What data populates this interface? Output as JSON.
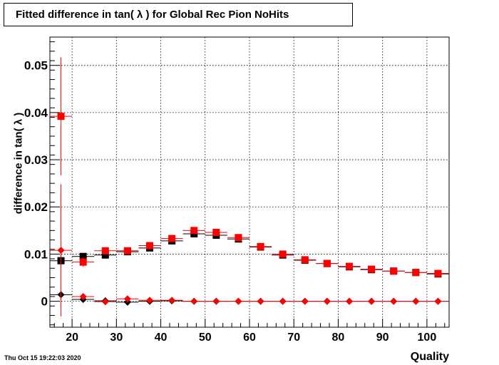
{
  "title": "Fitted difference in tan( λ ) for Global Rec Pion NoHits",
  "footer": {
    "timestamp": "Thu Oct 15 19:22:03 2020"
  },
  "chart_data": {
    "type": "scatter",
    "title": "Fitted difference in tan( λ ) for Global Rec Pion NoHits",
    "xlabel": "Quality",
    "ylabel": "difference in tan( λ )",
    "xlim": [
      15,
      105
    ],
    "ylim": [
      -0.0055,
      0.056
    ],
    "grid": true,
    "x_ticks": [
      "20",
      "30",
      "40",
      "50",
      "60",
      "70",
      "80",
      "90",
      "100"
    ],
    "y_ticks": [
      "0",
      "0.01",
      "0.02",
      "0.03",
      "0.04",
      "0.05"
    ],
    "bin_half_width": 2.5,
    "x": [
      17.5,
      22.5,
      27.5,
      32.5,
      37.5,
      42.5,
      47.5,
      52.5,
      57.5,
      62.5,
      67.5,
      72.5,
      77.5,
      82.5,
      87.5,
      92.5,
      97.5,
      102.5
    ],
    "series": [
      {
        "color": "#000000",
        "marker": "square",
        "values": [
          0.0086,
          0.0095,
          0.0098,
          0.0105,
          0.0113,
          0.0128,
          0.0143,
          0.014,
          0.0132,
          0.0115,
          0.0098,
          0.0087,
          0.008,
          0.0073,
          0.0067,
          0.0064,
          0.0061,
          0.0058
        ],
        "errors": [
          0.0013,
          0.0005,
          0.0004,
          0.0003,
          0.0003,
          0.0003,
          0.0002,
          0.0002,
          0.0002,
          0.0002,
          0.0002,
          0.0002,
          0.0002,
          0.0002,
          0.0002,
          0.0002,
          0.0002,
          0.0002
        ]
      },
      {
        "color": "#ff0000",
        "marker": "square",
        "values": [
          0.0392,
          0.0083,
          0.0107,
          0.0107,
          0.0118,
          0.0133,
          0.015,
          0.0146,
          0.0135,
          0.0116,
          0.01,
          0.0088,
          0.008,
          0.0074,
          0.0068,
          0.0064,
          0.0061,
          0.0059
        ],
        "errors": [
          0.0125,
          0.001,
          0.0005,
          0.0004,
          0.0003,
          0.0003,
          0.0003,
          0.0002,
          0.0002,
          0.0002,
          0.0002,
          0.0002,
          0.0002,
          0.0002,
          0.0002,
          0.0002,
          0.0002,
          0.0002
        ]
      },
      {
        "color": "#000000",
        "marker": "diamond",
        "values": [
          0.0014,
          0.0004,
          0.0001,
          -0.0002,
          0.0,
          0.0001,
          0.0,
          0.0,
          0.0,
          0.0,
          0.0,
          0.0,
          0.0,
          0.0,
          0.0,
          0.0,
          0.0,
          0.0
        ],
        "errors": [
          0.001,
          0.0003,
          0.0002,
          0.0002,
          0.0001,
          0.0001,
          0.0001,
          0.0001,
          0.0001,
          0.0001,
          0.0001,
          0.0001,
          0.0001,
          0.0001,
          0.0001,
          0.0001,
          0.0001,
          0.0001
        ]
      },
      {
        "color": "#ff0000",
        "marker": "diamond",
        "values": [
          0.0108,
          0.001,
          -0.0001,
          0.0005,
          0.0002,
          0.0002,
          0.0,
          0.0,
          0.0,
          0.0,
          0.0,
          0.0,
          0.0,
          0.0,
          0.0,
          0.0,
          0.0,
          0.0
        ],
        "errors": [
          0.014,
          0.0006,
          0.0003,
          0.0002,
          0.0002,
          0.0001,
          0.0001,
          0.0001,
          0.0001,
          0.0001,
          0.0001,
          0.0001,
          0.0001,
          0.0001,
          0.0001,
          0.0001,
          0.0001,
          0.0001
        ]
      }
    ]
  }
}
